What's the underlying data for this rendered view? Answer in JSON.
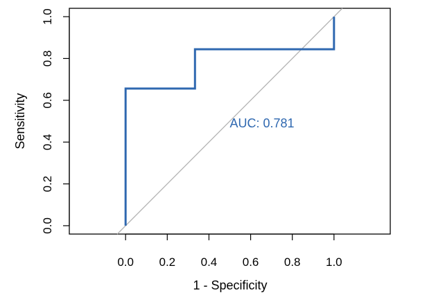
{
  "chart_data": {
    "type": "line",
    "title": "",
    "xlabel": "1 - Specificity",
    "ylabel": "Sensitivity",
    "xlim": [
      -0.27,
      1.27
    ],
    "ylim": [
      -0.04,
      1.04
    ],
    "x_ticks": [
      0.0,
      0.2,
      0.4,
      0.6,
      0.8,
      1.0
    ],
    "y_ticks": [
      0.0,
      0.2,
      0.4,
      0.6,
      0.8,
      1.0
    ],
    "x_tick_labels": [
      "0.0",
      "0.2",
      "0.4",
      "0.6",
      "0.8",
      "1.0"
    ],
    "y_tick_labels": [
      "0.0",
      "0.2",
      "0.4",
      "0.6",
      "0.8",
      "1.0"
    ],
    "series": [
      {
        "color": "#2f68b0",
        "x": [
          0.0,
          0.0,
          0.333,
          0.333,
          1.0,
          1.0
        ],
        "y": [
          0.0,
          0.656,
          0.656,
          0.844,
          0.844,
          1.0
        ]
      }
    ],
    "reference_line": {
      "color": "#b4b4b4",
      "x": [
        -0.04,
        1.04
      ],
      "y": [
        -0.04,
        1.04
      ]
    },
    "annotations": [
      {
        "text": "AUC: 0.781",
        "x": 0.5,
        "y": 0.47,
        "color": "#2f68b0"
      }
    ],
    "grid": false,
    "legend": "none"
  }
}
